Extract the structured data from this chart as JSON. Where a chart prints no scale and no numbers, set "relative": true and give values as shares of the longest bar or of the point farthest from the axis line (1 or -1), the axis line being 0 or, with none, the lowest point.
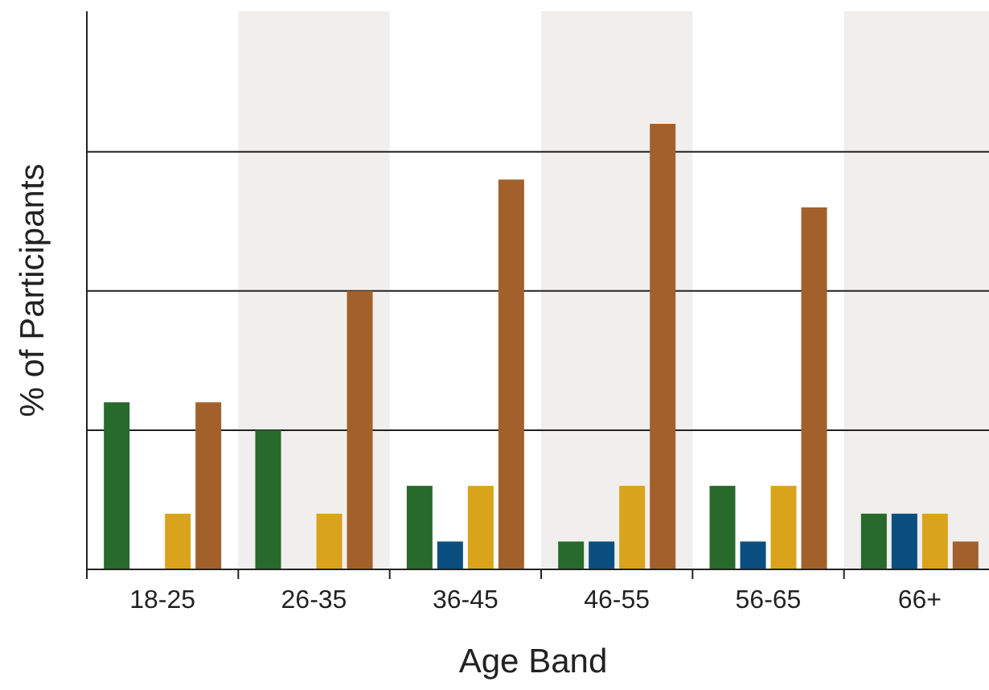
{
  "chart_data": {
    "type": "bar",
    "relative": true,
    "xlabel": "Age Band",
    "ylabel": "% of Participants",
    "grid": "y",
    "categories": [
      "18-25",
      "26-35",
      "36-45",
      "46-55",
      "56-65",
      "66+"
    ],
    "series": [
      {
        "color": "#276a2b",
        "values": [
          0.375,
          0.3125,
          0.1875,
          0.0625,
          0.1875,
          0.125
        ]
      },
      {
        "color": "#0a4f80",
        "values": [
          0,
          0,
          0.0625,
          0.0625,
          0.0625,
          0.125
        ]
      },
      {
        "color": "#d9a31c",
        "values": [
          0.125,
          0.125,
          0.1875,
          0.1875,
          0.1875,
          0.125
        ]
      },
      {
        "color": "#a2612a",
        "values": [
          0.375,
          0.625,
          0.875,
          1,
          0.8125,
          0.0625
        ]
      }
    ]
  }
}
